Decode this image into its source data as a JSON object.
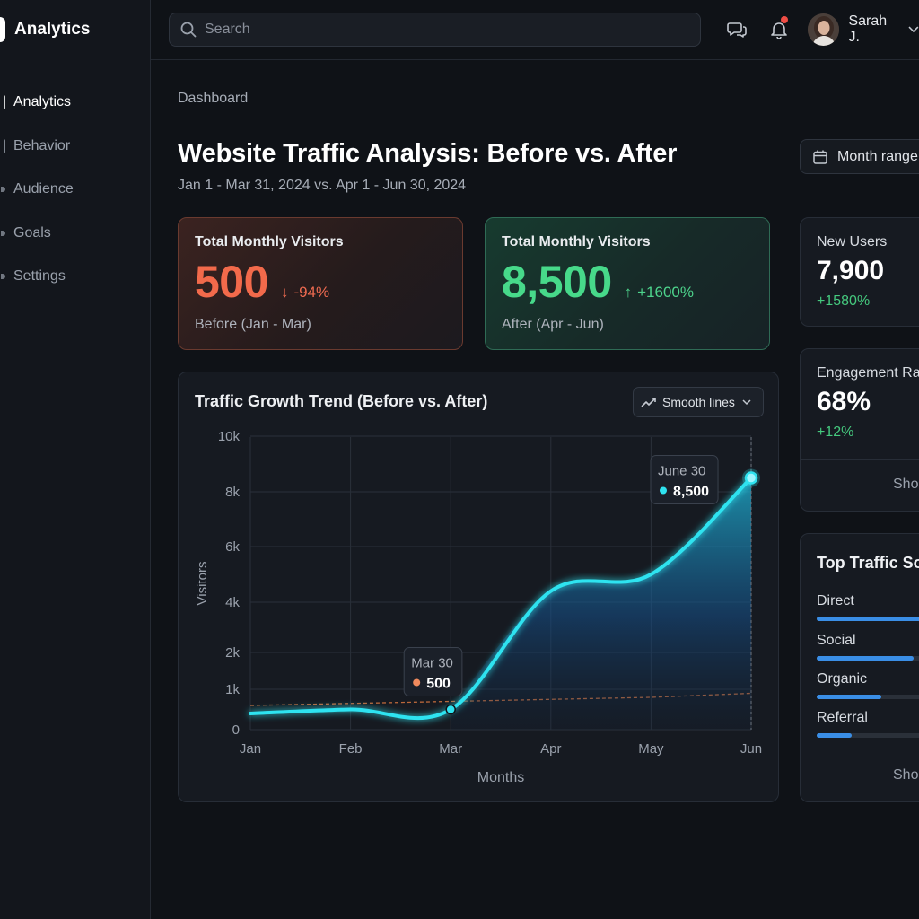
{
  "app": {
    "name": "Analytics"
  },
  "sidebar": {
    "items": [
      {
        "label": "Analytics",
        "active": true
      },
      {
        "label": "Behavior",
        "active": false
      },
      {
        "label": "Audience",
        "active": false
      },
      {
        "label": "Goals",
        "active": false
      },
      {
        "label": "Settings",
        "active": false
      }
    ]
  },
  "topbar": {
    "search_placeholder": "Search",
    "user_name": "Sarah J.",
    "notification_dot_color": "#ef4d45"
  },
  "breadcrumb": "Dashboard",
  "page": {
    "title": "Website Traffic Analysis: Before vs. After",
    "subtitle": "Jan 1 - Mar 31, 2024 vs. Apr 1 - Jun 30, 2024",
    "range_button": "Month range"
  },
  "kpis": {
    "before": {
      "label": "Total Monthly Visitors",
      "value": "500",
      "delta": "-94%",
      "caption": "Before (Jan - Mar)",
      "color": "#f26a4b"
    },
    "after": {
      "label": "Total Monthly Visitors",
      "value": "8,500",
      "delta": "+1600%",
      "caption": "After (Apr - Jun)",
      "color": "#47d98a"
    }
  },
  "chart_card": {
    "title": "Traffic Growth Trend (Before vs. After)",
    "smooth_button": "Smooth lines"
  },
  "chart_data": {
    "type": "line",
    "title": "Traffic Growth Trend (Before vs. After)",
    "xlabel": "Months",
    "ylabel": "Visitors",
    "categories": [
      "Jan",
      "Feb",
      "Mar",
      "Apr",
      "May",
      "Jun"
    ],
    "y_ticks": [
      0,
      1000,
      2000,
      4000,
      6000,
      8000,
      10000
    ],
    "y_tick_labels": [
      "0",
      "1k",
      "2k",
      "4k",
      "6k",
      "8k",
      "10k"
    ],
    "ylim": [
      0,
      10000
    ],
    "grid": true,
    "series": [
      {
        "values": [
          400,
          500,
          500,
          4400,
          5000,
          8500
        ],
        "color": "#2fe3f0"
      },
      {
        "style": "dashed",
        "values": [
          600,
          650,
          700,
          750,
          800,
          900
        ],
        "color": "#d7763f"
      }
    ],
    "annotations": [
      {
        "date": "Mar 30",
        "value": "500",
        "dot_color": "#f08a5d",
        "x": "Mar",
        "y": 500
      },
      {
        "date": "June 30",
        "value": "8,500",
        "dot_color": "#2fe3f0",
        "x": "Jun",
        "y": 8500
      }
    ]
  },
  "right": {
    "new_users": {
      "label": "New Users",
      "value": "7,900",
      "delta": "+1580%"
    },
    "engagement": {
      "label": "Engagement Ra",
      "value": "68%",
      "delta": "+12%",
      "link": "Sho"
    },
    "sources": {
      "title": "Top Traffic So",
      "items": [
        {
          "name": "Direct",
          "share": 1.0
        },
        {
          "name": "Social",
          "share": 0.72
        },
        {
          "name": "Organic",
          "share": 0.48
        },
        {
          "name": "Referral",
          "share": 0.26
        }
      ],
      "link": "Sho"
    }
  }
}
